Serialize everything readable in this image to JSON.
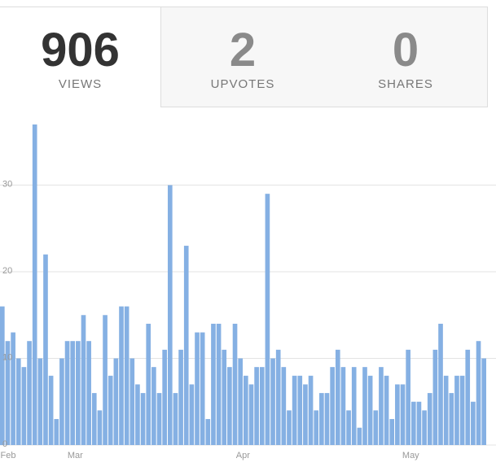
{
  "stats": [
    {
      "value": 906,
      "label": "VIEWS"
    },
    {
      "value": 2,
      "label": "UPVOTES"
    },
    {
      "value": 0,
      "label": "SHARES"
    }
  ],
  "chart_data": {
    "type": "bar",
    "color": "#85b0e3",
    "grid": true,
    "ylim": [
      0,
      37
    ],
    "yticks": [
      0,
      10,
      20,
      30
    ],
    "categories": [
      "Feb",
      null,
      null,
      null,
      null,
      null,
      null,
      null,
      null,
      null,
      null,
      null,
      null,
      null,
      "Mar",
      null,
      null,
      null,
      null,
      null,
      null,
      null,
      null,
      null,
      null,
      null,
      null,
      null,
      null,
      null,
      null,
      null,
      null,
      null,
      null,
      null,
      null,
      null,
      null,
      null,
      null,
      null,
      null,
      null,
      null,
      "Apr",
      null,
      null,
      null,
      null,
      null,
      null,
      null,
      null,
      null,
      null,
      null,
      null,
      null,
      null,
      null,
      null,
      null,
      null,
      null,
      null,
      null,
      null,
      null,
      null,
      null,
      null,
      null,
      null,
      null,
      null,
      "May",
      null,
      null,
      null,
      null,
      null,
      null,
      null,
      null,
      null,
      null,
      null,
      null,
      null
    ],
    "values": [
      16,
      12,
      13,
      10,
      9,
      12,
      37,
      10,
      22,
      8,
      3,
      10,
      12,
      12,
      12,
      15,
      12,
      6,
      4,
      15,
      8,
      10,
      16,
      16,
      10,
      7,
      6,
      14,
      9,
      6,
      11,
      30,
      6,
      11,
      23,
      7,
      13,
      13,
      3,
      14,
      14,
      11,
      9,
      14,
      10,
      8,
      7,
      9,
      9,
      29,
      10,
      11,
      9,
      4,
      8,
      8,
      7,
      8,
      4,
      6,
      6,
      9,
      11,
      9,
      4,
      9,
      2,
      9,
      8,
      4,
      9,
      8,
      3,
      7,
      7,
      11,
      5,
      5,
      4,
      6,
      11,
      14,
      8,
      6,
      8,
      8,
      11,
      5,
      12,
      10
    ]
  }
}
